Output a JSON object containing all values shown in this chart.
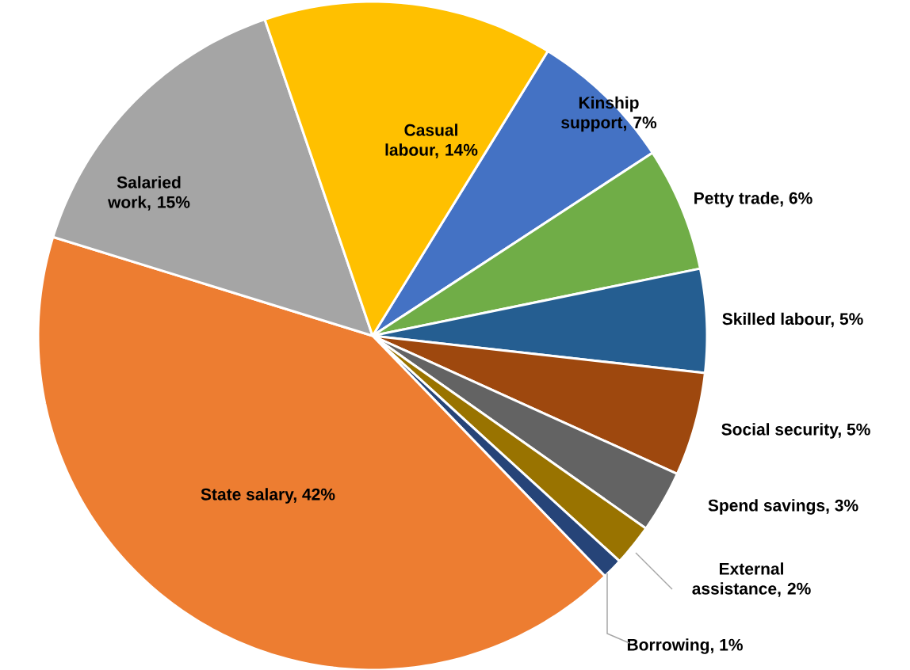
{
  "chart_data": {
    "type": "pie",
    "categories": [
      "Kinship support, 7%",
      "Petty trade, 6%",
      "Skilled labour, 5%",
      "Social security, 5%",
      "Spend savings, 3%",
      "External assistance, 2%",
      "Borrowing, 1%",
      "State salary, 42%",
      "Salaried work, 15%",
      "Casual labour, 14%"
    ],
    "values": [
      7,
      6,
      5,
      5,
      3,
      2,
      1,
      42,
      15,
      14
    ],
    "colors": [
      "#4472c4",
      "#70ad47",
      "#255e91",
      "#9e480e",
      "#636363",
      "#997300",
      "#264478",
      "#ed7d31",
      "#a5a5a5",
      "#ffc000"
    ]
  }
}
